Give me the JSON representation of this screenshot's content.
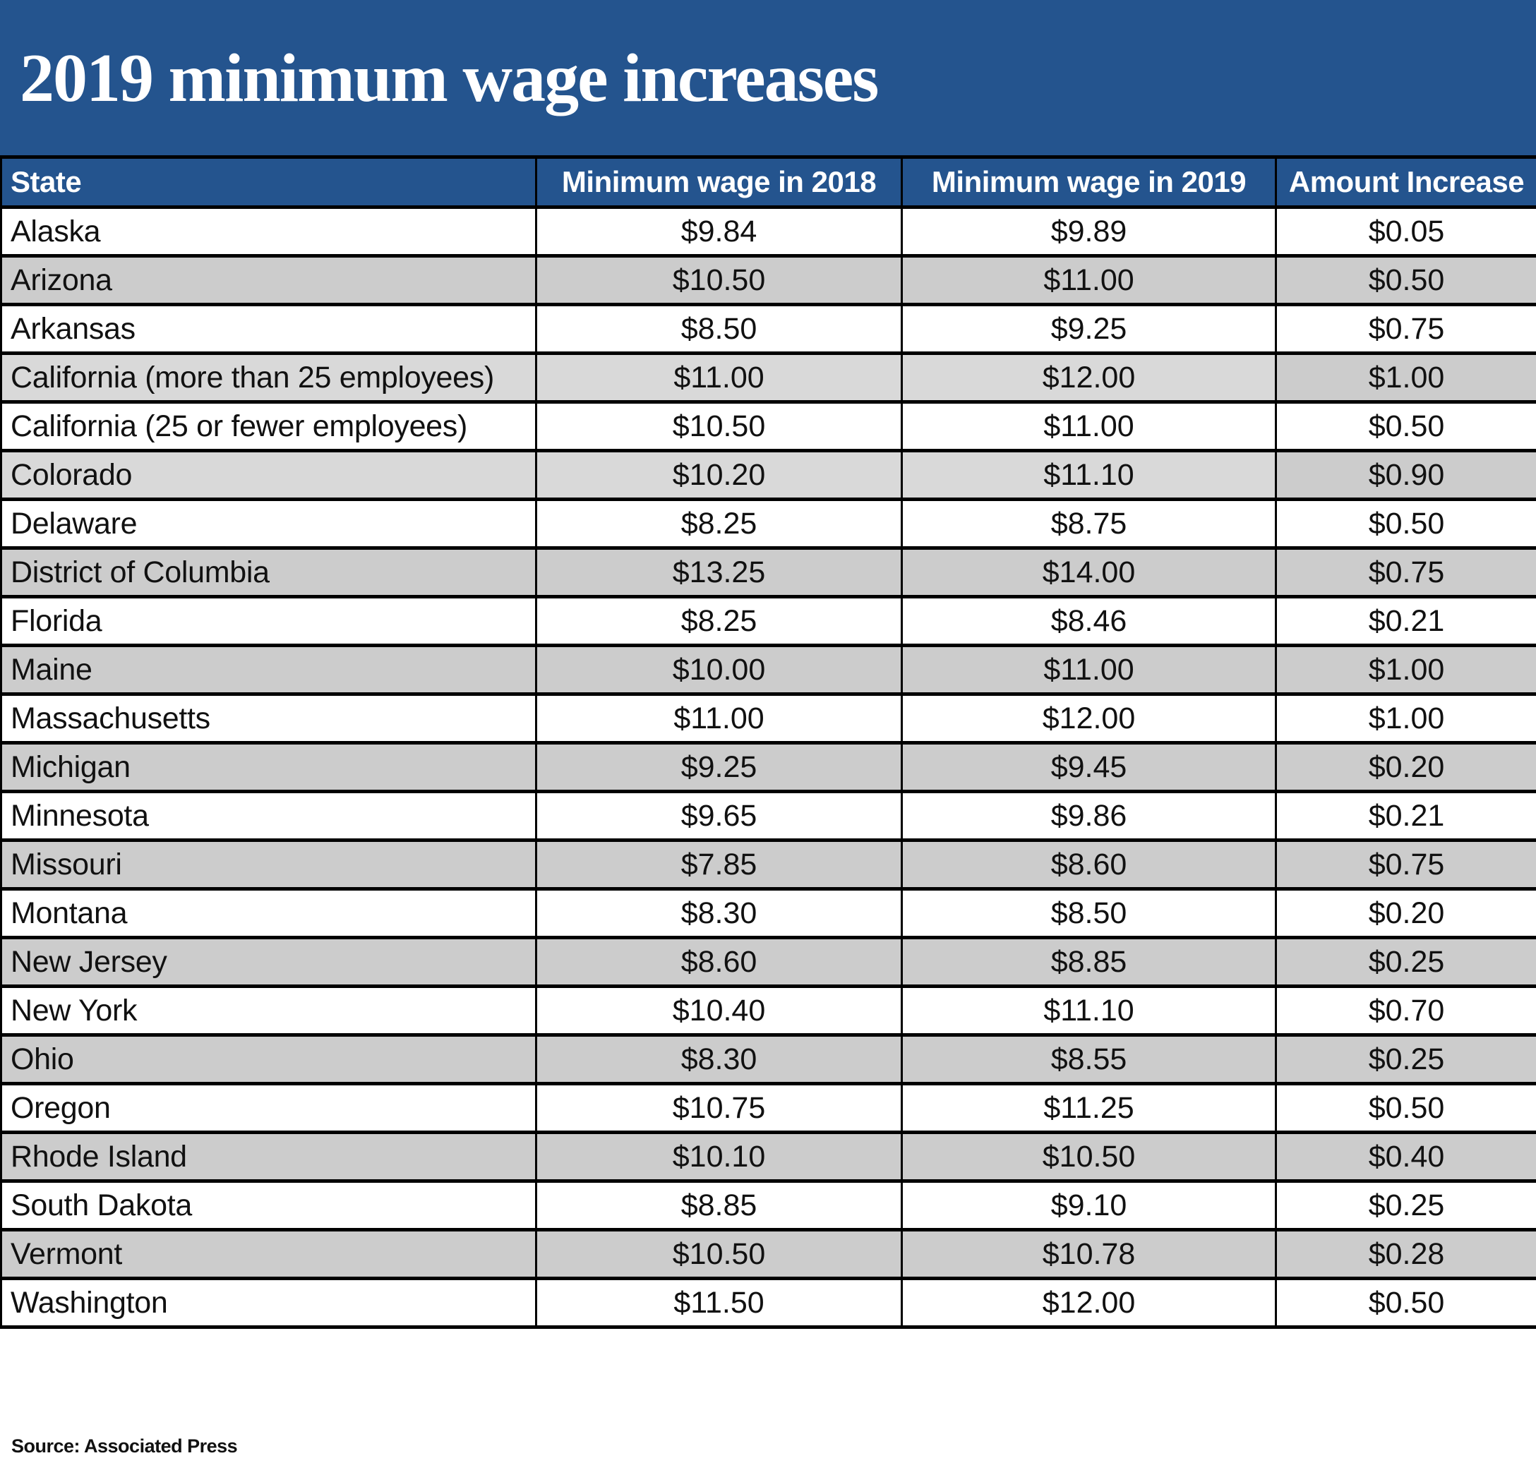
{
  "title": "2019 minimum wage increases",
  "colors": {
    "header_blue": "#24548e",
    "row_gray": "#cccccc",
    "row_light_gray": "#d9d9d9"
  },
  "columns": [
    "State",
    "Minimum wage in 2018",
    "Minimum wage in 2019",
    "Amount Increase"
  ],
  "rows": [
    {
      "state": "Alaska",
      "w2018": "$9.84",
      "w2019": "$9.89",
      "increase": "$0.05",
      "shade": "white"
    },
    {
      "state": "Arizona",
      "w2018": "$10.50",
      "w2019": "$11.00",
      "increase": "$0.50",
      "shade": "gray"
    },
    {
      "state": "Arkansas",
      "w2018": "$8.50",
      "w2019": "$9.25",
      "increase": "$0.75",
      "shade": "white"
    },
    {
      "state": "California (more than 25 employees)",
      "w2018": "$11.00",
      "w2019": "$12.00",
      "increase": "$1.00",
      "shade": "light"
    },
    {
      "state": "California (25 or fewer employees)",
      "w2018": "$10.50",
      "w2019": "$11.00",
      "increase": "$0.50",
      "shade": "white"
    },
    {
      "state": "Colorado",
      "w2018": "$10.20",
      "w2019": "$11.10",
      "increase": "$0.90",
      "shade": "light"
    },
    {
      "state": "Delaware",
      "w2018": "$8.25",
      "w2019": "$8.75",
      "increase": "$0.50",
      "shade": "white"
    },
    {
      "state": "District of Columbia",
      "w2018": "$13.25",
      "w2019": "$14.00",
      "increase": "$0.75",
      "shade": "gray"
    },
    {
      "state": "Florida",
      "w2018": "$8.25",
      "w2019": "$8.46",
      "increase": "$0.21",
      "shade": "white"
    },
    {
      "state": "Maine",
      "w2018": "$10.00",
      "w2019": "$11.00",
      "increase": "$1.00",
      "shade": "gray"
    },
    {
      "state": "Massachusetts",
      "w2018": "$11.00",
      "w2019": "$12.00",
      "increase": "$1.00",
      "shade": "white"
    },
    {
      "state": "Michigan",
      "w2018": "$9.25",
      "w2019": "$9.45",
      "increase": "$0.20",
      "shade": "gray"
    },
    {
      "state": "Minnesota",
      "w2018": "$9.65",
      "w2019": "$9.86",
      "increase": "$0.21",
      "shade": "white"
    },
    {
      "state": "Missouri",
      "w2018": "$7.85",
      "w2019": "$8.60",
      "increase": "$0.75",
      "shade": "gray"
    },
    {
      "state": "Montana",
      "w2018": "$8.30",
      "w2019": "$8.50",
      "increase": "$0.20",
      "shade": "white"
    },
    {
      "state": "New Jersey",
      "w2018": "$8.60",
      "w2019": "$8.85",
      "increase": "$0.25",
      "shade": "gray"
    },
    {
      "state": "New York",
      "w2018": "$10.40",
      "w2019": "$11.10",
      "increase": "$0.70",
      "shade": "white"
    },
    {
      "state": "Ohio",
      "w2018": "$8.30",
      "w2019": "$8.55",
      "increase": "$0.25",
      "shade": "gray"
    },
    {
      "state": "Oregon",
      "w2018": "$10.75",
      "w2019": "$11.25",
      "increase": "$0.50",
      "shade": "white"
    },
    {
      "state": "Rhode Island",
      "w2018": "$10.10",
      "w2019": "$10.50",
      "increase": "$0.40",
      "shade": "gray"
    },
    {
      "state": "South Dakota",
      "w2018": "$8.85",
      "w2019": "$9.10",
      "increase": "$0.25",
      "shade": "white"
    },
    {
      "state": "Vermont",
      "w2018": "$10.50",
      "w2019": "$10.78",
      "increase": "$0.28",
      "shade": "gray"
    },
    {
      "state": "Washington",
      "w2018": "$11.50",
      "w2019": "$12.00",
      "increase": "$0.50",
      "shade": "white"
    }
  ],
  "source": "Source: Associated Press"
}
